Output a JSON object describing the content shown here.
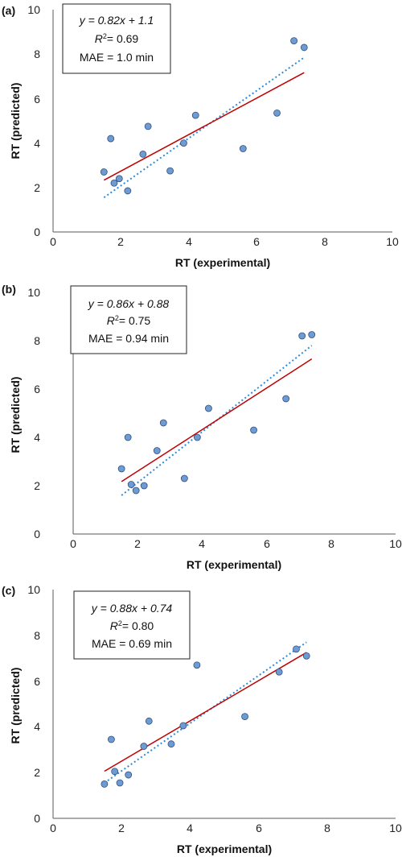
{
  "colors": {
    "point_fill": "#6f9bd3",
    "point_stroke": "#2f4f7f",
    "fit_line": "#c00000",
    "identity_line": "#2e8bd8",
    "axis": "#595959"
  },
  "chart_data": [
    {
      "type": "scatter",
      "panel_label": "(a)",
      "xlabel": "RT (experimental)",
      "ylabel": "RT (predicted)",
      "xlim": [
        0,
        10
      ],
      "ylim": [
        0,
        10
      ],
      "x_ticks": [
        "0",
        "2",
        "4",
        "6",
        "8",
        "10"
      ],
      "y_ticks": [
        "0",
        "2",
        "4",
        "6",
        "8",
        "10"
      ],
      "grid": false,
      "stats": {
        "fit_equation": "y = 0.82x + 1.1",
        "r2_value": "= 0.69",
        "mae": "MAE = 1.0 min"
      },
      "fit_line": {
        "slope": 0.82,
        "intercept": 1.1,
        "x_range": [
          1.5,
          7.4
        ],
        "style": "solid"
      },
      "trend_line": {
        "x_range": [
          1.5,
          7.4
        ],
        "y_range": [
          1.55,
          7.85
        ],
        "style": "dotted"
      },
      "points": [
        {
          "x": 1.5,
          "y": 2.7
        },
        {
          "x": 1.7,
          "y": 4.2
        },
        {
          "x": 1.8,
          "y": 2.2
        },
        {
          "x": 1.95,
          "y": 2.4
        },
        {
          "x": 2.2,
          "y": 1.85
        },
        {
          "x": 2.65,
          "y": 3.5
        },
        {
          "x": 2.8,
          "y": 4.75
        },
        {
          "x": 3.45,
          "y": 2.75
        },
        {
          "x": 3.85,
          "y": 4.0
        },
        {
          "x": 4.2,
          "y": 5.25
        },
        {
          "x": 5.6,
          "y": 3.75
        },
        {
          "x": 6.6,
          "y": 5.35
        },
        {
          "x": 7.1,
          "y": 8.6
        },
        {
          "x": 7.4,
          "y": 8.3
        }
      ]
    },
    {
      "type": "scatter",
      "panel_label": "(b)",
      "xlabel": "RT (experimental)",
      "ylabel": "RT (predicted)",
      "xlim": [
        0,
        10
      ],
      "ylim": [
        0,
        10
      ],
      "x_ticks": [
        "0",
        "2",
        "4",
        "6",
        "8",
        "10"
      ],
      "y_ticks": [
        "0",
        "2",
        "4",
        "6",
        "8",
        "10"
      ],
      "grid": false,
      "stats": {
        "fit_equation": "y = 0.86x + 0.88",
        "r2_value": "= 0.75",
        "mae": "MAE = 0.94 min"
      },
      "fit_line": {
        "slope": 0.86,
        "intercept": 0.88,
        "x_range": [
          1.5,
          7.4
        ],
        "style": "solid"
      },
      "trend_line": {
        "x_range": [
          1.5,
          7.4
        ],
        "y_range": [
          1.6,
          7.8
        ],
        "style": "dotted"
      },
      "points": [
        {
          "x": 1.5,
          "y": 2.7
        },
        {
          "x": 1.7,
          "y": 4.0
        },
        {
          "x": 1.8,
          "y": 2.05
        },
        {
          "x": 1.95,
          "y": 1.8
        },
        {
          "x": 2.2,
          "y": 2.0
        },
        {
          "x": 2.6,
          "y": 3.45
        },
        {
          "x": 2.8,
          "y": 4.6
        },
        {
          "x": 3.45,
          "y": 2.3
        },
        {
          "x": 3.85,
          "y": 4.0
        },
        {
          "x": 4.2,
          "y": 5.2
        },
        {
          "x": 5.6,
          "y": 4.3
        },
        {
          "x": 6.6,
          "y": 5.6
        },
        {
          "x": 7.1,
          "y": 8.2
        },
        {
          "x": 7.4,
          "y": 8.25
        }
      ]
    },
    {
      "type": "scatter",
      "panel_label": "(c)",
      "xlabel": "RT (experimental)",
      "ylabel": "RT (predicted)",
      "xlim": [
        0,
        10
      ],
      "ylim": [
        0,
        10
      ],
      "x_ticks": [
        "0",
        "2",
        "4",
        "6",
        "8",
        "10"
      ],
      "y_ticks": [
        "0",
        "2",
        "4",
        "6",
        "8",
        "10"
      ],
      "grid": false,
      "stats": {
        "fit_equation": "y = 0.88x + 0.74",
        "r2_value": "= 0.80",
        "mae": "MAE = 0.69 min"
      },
      "fit_line": {
        "slope": 0.88,
        "intercept": 0.74,
        "x_range": [
          1.5,
          7.4
        ],
        "style": "solid"
      },
      "trend_line": {
        "x_range": [
          1.5,
          7.4
        ],
        "y_range": [
          1.55,
          7.7
        ],
        "style": "dotted"
      },
      "points": [
        {
          "x": 1.5,
          "y": 1.5
        },
        {
          "x": 1.7,
          "y": 3.45
        },
        {
          "x": 1.8,
          "y": 2.05
        },
        {
          "x": 1.95,
          "y": 1.55
        },
        {
          "x": 2.2,
          "y": 1.9
        },
        {
          "x": 2.65,
          "y": 3.15
        },
        {
          "x": 2.8,
          "y": 4.25
        },
        {
          "x": 3.45,
          "y": 3.25
        },
        {
          "x": 3.8,
          "y": 4.05
        },
        {
          "x": 4.2,
          "y": 6.7
        },
        {
          "x": 5.6,
          "y": 4.45
        },
        {
          "x": 6.6,
          "y": 6.4
        },
        {
          "x": 7.1,
          "y": 7.4
        },
        {
          "x": 7.4,
          "y": 7.1
        }
      ]
    }
  ]
}
